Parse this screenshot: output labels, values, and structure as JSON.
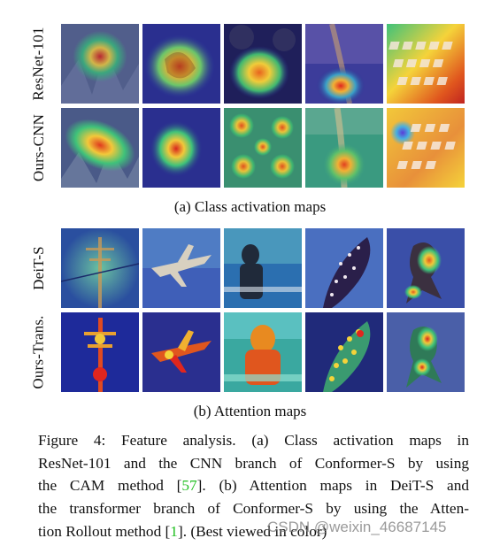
{
  "section_a": {
    "caption": "(a) Class activation maps",
    "rows": [
      {
        "label": "ResNet-101"
      },
      {
        "label": "Ours-CNN"
      }
    ]
  },
  "section_b": {
    "caption": "(b) Attention maps",
    "rows": [
      {
        "label": "DeiT-S"
      },
      {
        "label": "Ours-Trans."
      }
    ]
  },
  "figure_caption": {
    "line1": "Figure 4:  Feature analysis.  (a) Class activation maps in",
    "line2": "ResNet-101 and the CNN branch of Conformer-S by using",
    "line3a": "the CAM method [",
    "cite1": "57",
    "line3b": "].  (b) Attention maps in DeiT-S and",
    "line4": "the transformer branch of Conformer-S by using the Atten-",
    "line5a": "tion Rollout method [",
    "cite2": "1",
    "line5b": "]. (Best viewed in color)"
  },
  "watermark": "CSDN @weixin_46687145",
  "colors": {
    "citation": "#1fbf1f",
    "heat_hot": "#d7261e",
    "heat_warm": "#f5d33a",
    "heat_mid": "#3fc27a",
    "heat_cold": "#2a2f8f"
  }
}
